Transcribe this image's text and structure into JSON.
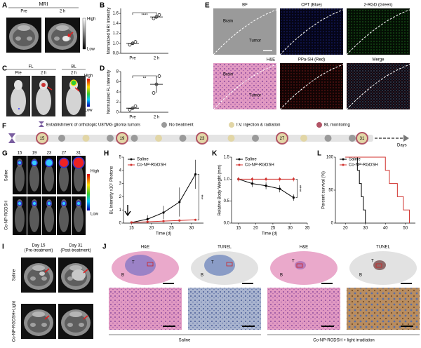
{
  "panel_labels": [
    "A",
    "B",
    "C",
    "D",
    "E",
    "F",
    "G",
    "H",
    "K",
    "L",
    "I",
    "J"
  ],
  "panel_a": {
    "title": "MRI",
    "columns": [
      "Pre",
      "2 h"
    ],
    "scale": [
      "High",
      "Low"
    ]
  },
  "panel_c": {
    "groups": [
      "FL",
      "BL"
    ],
    "columns": [
      "Pre",
      "2 h",
      "2 h"
    ],
    "scale": [
      "High",
      "Low"
    ]
  },
  "panel_e": {
    "columns_top": [
      "BF",
      "CPT (Blue)",
      "2-RGD (Green)"
    ],
    "columns_bottom": [
      "H&E",
      "PPa-SH (Red)",
      "Merge"
    ],
    "regions": [
      "Brain",
      "Tumor"
    ]
  },
  "panel_f": {
    "note": "Establishment of orthotopic U87MG glioma tumors",
    "legend": [
      "No treatment",
      "I.V. injection & radiation",
      "BL monitoring"
    ],
    "days": [
      15,
      19,
      23,
      27,
      31
    ],
    "axis": "Days"
  },
  "panel_g": {
    "days": [
      15,
      19,
      23,
      27,
      31
    ],
    "rows": [
      "Saline",
      "Co-NP-RGDSH"
    ],
    "scale": [
      "High",
      "Low"
    ]
  },
  "panel_i": {
    "columns": [
      "Day 15",
      "Day 31"
    ],
    "subcolumns": [
      "(Pre-treatment)",
      "(Post-treatment)"
    ],
    "rows": [
      "Saline",
      "Co-NP-RGDSH+Light"
    ]
  },
  "panel_j": {
    "stains": [
      "H&E",
      "TUNEL",
      "H&E",
      "TUNEL"
    ],
    "regions": [
      "T",
      "B"
    ],
    "groups": [
      "Saline",
      "Co-NP-RGDSH + light irradiation"
    ]
  },
  "chart_data": [
    {
      "type": "dot",
      "ylabel": "Normalized MRI Intensity",
      "categories": [
        "Pre",
        "2 h"
      ],
      "values": [
        [
          0.97,
          1.0,
          1.03
        ],
        [
          1.5,
          1.53,
          1.57
        ]
      ],
      "means": [
        1.0,
        1.53
      ],
      "errors": [
        0.03,
        0.035
      ],
      "ylim": [
        0.8,
        1.7
      ],
      "yticks": [
        0.8,
        {
          "value": 1,
          "label": "1.0"
        },
        1.2,
        1.4,
        1.6
      ],
      "annotation": "****",
      "color": "#000000"
    },
    {
      "type": "dot",
      "ylabel": "Normalized FL Intensity",
      "categories": [
        "Pre",
        "2 h"
      ],
      "values": [
        [
          0.5,
          0.8,
          1.2
        ],
        [
          3.8,
          5.5,
          7.1
        ]
      ],
      "means": [
        0.8,
        5.5
      ],
      "errors": [
        0.35,
        1.65
      ],
      "ylim": [
        0,
        8
      ],
      "yticks": [
        0,
        2,
        4,
        6,
        8
      ],
      "annotation": "**",
      "color": "#000000"
    },
    {
      "type": "line",
      "ylabel": "BL Intensity x10⁷ Photons",
      "xlabel": "Time (d)",
      "x": [
        15,
        19,
        23,
        27,
        31
      ],
      "series": [
        {
          "name": "Saline",
          "color": "#000000",
          "values": [
            0.05,
            0.3,
            0.8,
            1.6,
            3.7
          ],
          "errors": [
            0.03,
            0.3,
            0.5,
            1.1,
            1.1
          ]
        },
        {
          "name": "Co-NP-RGDSH",
          "color": "#d0312d",
          "values": [
            0.05,
            0.1,
            0.15,
            0.2,
            0.25
          ],
          "errors": [
            0.02,
            0.05,
            0.05,
            0.05,
            0.05
          ]
        }
      ],
      "xlim": [
        13,
        33
      ],
      "xticks": [
        15,
        20,
        25,
        30
      ],
      "ylim": [
        0,
        5
      ],
      "yticks": [
        0,
        1,
        2,
        3,
        4,
        5
      ],
      "annotation": "***"
    },
    {
      "type": "line",
      "ylabel": "Relative Body Weight (mm)",
      "xlabel": "Time (d)",
      "x": [
        15,
        19,
        23,
        27,
        31
      ],
      "series": [
        {
          "name": "Saline",
          "color": "#000000",
          "values": [
            1.0,
            0.9,
            0.85,
            0.78,
            0.58
          ],
          "errors": [
            0.05,
            0.08,
            0.08,
            0.08,
            0.07
          ]
        },
        {
          "name": "Co-NP-RGDSH",
          "color": "#d0312d",
          "values": [
            1.0,
            1.0,
            1.0,
            1.0,
            1.0
          ],
          "errors": [
            0.05,
            0.05,
            0.05,
            0.05,
            0.05
          ]
        }
      ],
      "xlim": [
        13,
        35
      ],
      "xticks": [
        15,
        20,
        25,
        30,
        35
      ],
      "ylim": [
        0,
        1.5
      ],
      "yticks": [
        {
          "value": 0,
          "label": "0.0"
        },
        0.5,
        {
          "value": 1,
          "label": "1.0"
        },
        1.5
      ],
      "annotation": "****"
    },
    {
      "type": "step",
      "ylabel": "Percent survival (%)",
      "series": [
        {
          "name": "Saline",
          "color": "#000000",
          "x": [
            20,
            26,
            27,
            28,
            29,
            30
          ],
          "values": [
            100,
            80,
            60,
            40,
            20,
            0
          ]
        },
        {
          "name": "Co-NP-RGDSH",
          "color": "#d0312d",
          "x": [
            20,
            40,
            42,
            46,
            49,
            52
          ],
          "values": [
            100,
            80,
            60,
            40,
            20,
            0
          ]
        }
      ],
      "xlim": [
        15,
        55
      ],
      "xticks": [
        20,
        30,
        40,
        50
      ],
      "ylim": [
        0,
        100
      ],
      "yticks": [
        0,
        50,
        100
      ]
    }
  ]
}
